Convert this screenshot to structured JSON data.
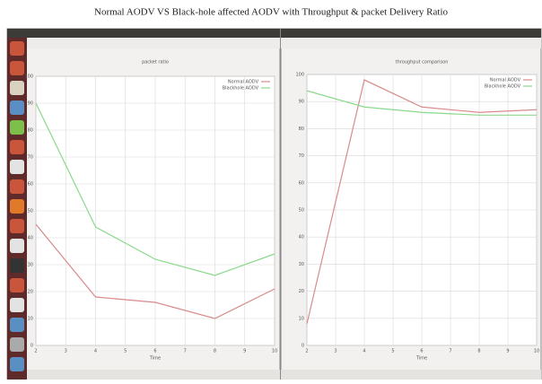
{
  "title": "Normal AODV VS Black-hole affected AODV with Throughput & packet Delivery Ratio",
  "chart_data": [
    {
      "type": "line",
      "title": "packet ratio",
      "x_label": "Time",
      "x": [
        2,
        4,
        6,
        8,
        10
      ],
      "xlim": [
        2,
        10
      ],
      "xticks": [
        2,
        3,
        4,
        5,
        6,
        7,
        8,
        9,
        10
      ],
      "ylim": [
        0,
        100
      ],
      "yticks": [
        0,
        10,
        20,
        30,
        40,
        50,
        60,
        70,
        80,
        90,
        100
      ],
      "grid": true,
      "legend": "upper right",
      "series": [
        {
          "name": "Normal AODV",
          "color": "#d98a8a",
          "values": [
            45,
            18,
            16,
            10,
            21
          ]
        },
        {
          "name": "Blackhole AODV",
          "color": "#8ad98a",
          "values": [
            90,
            44,
            32,
            26,
            34
          ]
        }
      ]
    },
    {
      "type": "line",
      "title": "throughput comparison",
      "x_label": "Time",
      "x": [
        2,
        4,
        6,
        8,
        10
      ],
      "xlim": [
        2,
        10
      ],
      "xticks": [
        2,
        3,
        4,
        5,
        6,
        7,
        8,
        9,
        10
      ],
      "ylim": [
        0,
        100
      ],
      "yticks": [
        0,
        10,
        20,
        30,
        40,
        50,
        60,
        70,
        80,
        90,
        100
      ],
      "grid": true,
      "legend": "upper right",
      "series": [
        {
          "name": "Normal AODV",
          "color": "#d98a8a",
          "values": [
            8,
            98,
            88,
            86,
            87
          ]
        },
        {
          "name": "Blackhole AODV",
          "color": "#8ad98a",
          "values": [
            94,
            88,
            86,
            85,
            85
          ]
        }
      ]
    }
  ]
}
